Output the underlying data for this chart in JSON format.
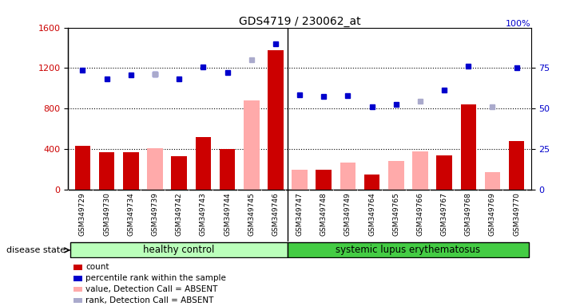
{
  "title": "GDS4719 / 230062_at",
  "samples": [
    "GSM349729",
    "GSM349730",
    "GSM349734",
    "GSM349739",
    "GSM349742",
    "GSM349743",
    "GSM349744",
    "GSM349745",
    "GSM349746",
    "GSM349747",
    "GSM349748",
    "GSM349749",
    "GSM349764",
    "GSM349765",
    "GSM349766",
    "GSM349767",
    "GSM349768",
    "GSM349769",
    "GSM349770"
  ],
  "bar_values": [
    430,
    370,
    370,
    null,
    330,
    520,
    400,
    null,
    1380,
    null,
    200,
    null,
    150,
    null,
    null,
    340,
    840,
    null,
    480
  ],
  "bar_absent_values": [
    null,
    null,
    null,
    410,
    null,
    null,
    null,
    880,
    null,
    200,
    null,
    270,
    null,
    280,
    380,
    null,
    null,
    170,
    null
  ],
  "dot_values": [
    1180,
    1090,
    1130,
    1140,
    1090,
    1210,
    1160,
    null,
    1440,
    940,
    920,
    930,
    820,
    840,
    null,
    980,
    1220,
    null,
    1200
  ],
  "dot_absent_values": [
    null,
    null,
    null,
    1140,
    null,
    null,
    null,
    1280,
    null,
    null,
    null,
    null,
    null,
    null,
    870,
    null,
    null,
    820,
    null
  ],
  "healthy_control_count": 9,
  "bar_color_present": "#cc0000",
  "bar_color_absent": "#ffaaaa",
  "dot_color_present": "#0000cc",
  "dot_color_absent": "#aaaacc",
  "ylim_left": [
    0,
    1600
  ],
  "ylim_right": [
    0,
    100
  ],
  "yticks_left": [
    0,
    400,
    800,
    1200,
    1600
  ],
  "yticks_right": [
    0,
    25,
    50,
    75
  ],
  "legend_items": [
    {
      "label": "count",
      "color": "#cc0000"
    },
    {
      "label": "percentile rank within the sample",
      "color": "#0000cc"
    },
    {
      "label": "value, Detection Call = ABSENT",
      "color": "#ffaaaa"
    },
    {
      "label": "rank, Detection Call = ABSENT",
      "color": "#aaaacc"
    }
  ],
  "group_labels": [
    "healthy control",
    "systemic lupus erythematosus"
  ],
  "hc_color": "#bbffbb",
  "sle_color": "#44cc44",
  "disease_state_label": "disease state",
  "bar_width": 0.65,
  "dot_size": 5,
  "background_color": "#ffffff",
  "tick_area_color": "#dddddd",
  "grid_color": "#000000",
  "grid_linestyle": ":",
  "grid_linewidth": 0.8,
  "grid_values": [
    400,
    800,
    1200
  ]
}
